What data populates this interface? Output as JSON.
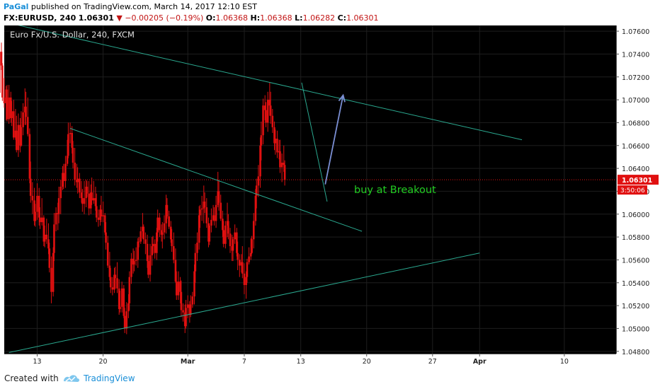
{
  "header": {
    "author": "PaGal",
    "published_text": "published on TradingView.com, March 14, 2017 12:10 EST",
    "symbol": "FX:EURUSD, 240",
    "last": "1.06301",
    "change": "−0.00205 (−0.19%)",
    "open_label": "O:",
    "open_value": "1.06368",
    "high_label": "H:",
    "high_value": "1.06368",
    "low_label": "L:",
    "low_value": "1.06282",
    "close_label": "C:",
    "close_value": "1.06301"
  },
  "chart_data": {
    "type": "candlestick",
    "title": "Euro Fx/U.S. Dollar, 240, FXCM",
    "ylim": [
      1.0478,
      1.0765
    ],
    "y_ticks": [
      "1.07600",
      "1.07400",
      "1.07200",
      "1.07000",
      "1.06800",
      "1.06600",
      "1.06400",
      "1.06200",
      "1.06000",
      "1.05800",
      "1.05600",
      "1.05400",
      "1.05200",
      "1.05000",
      "1.04800"
    ],
    "y_tick_values": [
      1.076,
      1.074,
      1.072,
      1.07,
      1.068,
      1.066,
      1.064,
      1.062,
      1.06,
      1.058,
      1.056,
      1.054,
      1.052,
      1.05,
      1.048
    ],
    "x_ticks": [
      "13",
      "20",
      "Mar",
      "7",
      "13",
      "20",
      "27",
      "Apr",
      "10"
    ],
    "x_tick_days": [
      -16,
      -9,
      0,
      6,
      12,
      19,
      26,
      31,
      40
    ],
    "day_range": [
      -19.5,
      45.5
    ],
    "current_price": {
      "label": "1.06301",
      "value": 1.06301,
      "countdown": "3:50:06"
    },
    "annotation": "buy at Breakout",
    "colors": {
      "candle": "#e01010",
      "trendline": "#2aa88f",
      "arrow": "#7b8fd4",
      "annotation": "#22cc22",
      "price_line": "#e01010"
    },
    "trendlines": [
      {
        "name": "upper-resistance",
        "from": [
          -19.5,
          1.0768
        ],
        "to": [
          35.5,
          1.0665
        ]
      },
      {
        "name": "inner-resistance",
        "from": [
          -12.5,
          1.0675
        ],
        "to": [
          18.5,
          1.0585
        ]
      },
      {
        "name": "lower-support",
        "from": [
          -19.0,
          1.0479
        ],
        "to": [
          31.0,
          1.0566
        ]
      },
      {
        "name": "pullback-line",
        "from": [
          12.1,
          1.0715
        ],
        "to": [
          14.8,
          1.0611
        ]
      }
    ],
    "arrow": {
      "from": [
        14.6,
        1.0626
      ],
      "to": [
        16.5,
        1.0704
      ]
    },
    "candles": [
      [
        -20.0,
        1.0706,
        1.0748,
        1.0701,
        1.0742
      ],
      [
        -19.8,
        1.0742,
        1.075,
        1.0726,
        1.073
      ],
      [
        -19.7,
        1.073,
        1.0732,
        1.0699,
        1.0702
      ],
      [
        -19.5,
        1.0702,
        1.0719,
        1.0693,
        1.0697
      ],
      [
        -19.3,
        1.0697,
        1.0712,
        1.0682,
        1.0709
      ],
      [
        -19.2,
        1.0709,
        1.0713,
        1.0681,
        1.0683
      ],
      [
        -19.0,
        1.0683,
        1.0713,
        1.0679,
        1.0702
      ],
      [
        -18.8,
        1.0702,
        1.0707,
        1.068,
        1.0684
      ],
      [
        -18.7,
        1.0684,
        1.0699,
        1.0677,
        1.069
      ],
      [
        -18.5,
        1.069,
        1.07,
        1.0665,
        1.0667
      ],
      [
        -18.3,
        1.0667,
        1.0692,
        1.0665,
        1.0673
      ],
      [
        -18.2,
        1.0673,
        1.0686,
        1.0654,
        1.0656
      ],
      [
        -18.0,
        1.0656,
        1.0688,
        1.065,
        1.0678
      ],
      [
        -17.8,
        1.0678,
        1.0684,
        1.0654,
        1.066
      ],
      [
        -17.7,
        1.066,
        1.069,
        1.0659,
        1.0676
      ],
      [
        -17.5,
        1.0676,
        1.0697,
        1.0669,
        1.0689
      ],
      [
        -17.3,
        1.0689,
        1.071,
        1.0678,
        1.0694
      ],
      [
        -17.2,
        1.0694,
        1.0707,
        1.0678,
        1.0685
      ],
      [
        -17.0,
        1.0685,
        1.0702,
        1.0668,
        1.067
      ],
      [
        -16.8,
        1.067,
        1.0675,
        1.0627,
        1.0631
      ],
      [
        -16.7,
        1.0631,
        1.0646,
        1.061,
        1.0616
      ],
      [
        -16.5,
        1.0616,
        1.0628,
        1.06,
        1.0612
      ],
      [
        -16.3,
        1.0612,
        1.0623,
        1.059,
        1.0594
      ],
      [
        -16.2,
        1.0594,
        1.0609,
        1.0589,
        1.0602
      ],
      [
        -16.0,
        1.0602,
        1.0627,
        1.0595,
        1.0616
      ],
      [
        -15.8,
        1.0616,
        1.0623,
        1.059,
        1.0597
      ],
      [
        -15.7,
        1.0597,
        1.0606,
        1.0587,
        1.0593
      ],
      [
        -15.5,
        1.0593,
        1.0614,
        1.059,
        1.0597
      ],
      [
        -15.3,
        1.0597,
        1.0599,
        1.0572,
        1.0576
      ],
      [
        -15.2,
        1.0576,
        1.059,
        1.0571,
        1.0582
      ],
      [
        -15.0,
        1.0582,
        1.0596,
        1.0574,
        1.0578
      ],
      [
        -14.8,
        1.0578,
        1.0592,
        1.0565,
        1.057
      ],
      [
        -14.7,
        1.057,
        1.0575,
        1.0549,
        1.0553
      ],
      [
        -14.5,
        1.0553,
        1.0563,
        1.0522,
        1.0532
      ],
      [
        -14.3,
        1.0532,
        1.0571,
        1.0528,
        1.0566
      ],
      [
        -14.2,
        1.0566,
        1.0601,
        1.0559,
        1.0591
      ],
      [
        -14.0,
        1.0591,
        1.0606,
        1.0585,
        1.0601
      ],
      [
        -13.8,
        1.0601,
        1.061,
        1.0586,
        1.06
      ],
      [
        -13.7,
        1.06,
        1.0624,
        1.0592,
        1.0614
      ],
      [
        -13.5,
        1.0614,
        1.063,
        1.06,
        1.0624
      ],
      [
        -13.3,
        1.0624,
        1.0642,
        1.0621,
        1.0636
      ],
      [
        -13.2,
        1.0636,
        1.0644,
        1.0622,
        1.0629
      ],
      [
        -13.0,
        1.0629,
        1.0651,
        1.0623,
        1.0644
      ],
      [
        -12.8,
        1.0644,
        1.0665,
        1.0642,
        1.0651
      ],
      [
        -12.7,
        1.0651,
        1.068,
        1.0649,
        1.067
      ],
      [
        -12.5,
        1.067,
        1.068,
        1.0662,
        1.0671
      ],
      [
        -12.3,
        1.0671,
        1.0677,
        1.0653,
        1.0658
      ],
      [
        -12.2,
        1.0658,
        1.0664,
        1.064,
        1.0645
      ],
      [
        -12.0,
        1.0645,
        1.0658,
        1.0625,
        1.063
      ],
      [
        -11.8,
        1.063,
        1.0644,
        1.0623,
        1.0628
      ],
      [
        -11.7,
        1.0628,
        1.0641,
        1.0618,
        1.0631
      ],
      [
        -11.5,
        1.0631,
        1.0636,
        1.0614,
        1.0619
      ],
      [
        -11.3,
        1.0619,
        1.0629,
        1.061,
        1.0614
      ],
      [
        -11.2,
        1.0614,
        1.0622,
        1.0602,
        1.0609
      ],
      [
        -11.0,
        1.0609,
        1.0629,
        1.06,
        1.0614
      ],
      [
        -10.8,
        1.0614,
        1.063,
        1.0606,
        1.0624
      ],
      [
        -10.7,
        1.0624,
        1.0629,
        1.0615,
        1.0618
      ],
      [
        -10.5,
        1.0618,
        1.0629,
        1.0599,
        1.0605
      ],
      [
        -10.3,
        1.0605,
        1.0626,
        1.06,
        1.0619
      ],
      [
        -10.2,
        1.0619,
        1.0632,
        1.0608,
        1.0612
      ],
      [
        -10.0,
        1.0612,
        1.0629,
        1.0609,
        1.0614
      ],
      [
        -9.8,
        1.0614,
        1.0624,
        1.0603,
        1.0607
      ],
      [
        -9.7,
        1.0607,
        1.0618,
        1.0593,
        1.0597
      ],
      [
        -9.5,
        1.0597,
        1.0604,
        1.0589,
        1.0595
      ],
      [
        -9.3,
        1.0595,
        1.0608,
        1.059,
        1.0604
      ],
      [
        -9.2,
        1.0604,
        1.0616,
        1.0593,
        1.0598
      ],
      [
        -9.0,
        1.0598,
        1.0611,
        1.0593,
        1.0599
      ],
      [
        -8.8,
        1.0599,
        1.0601,
        1.0582,
        1.0584
      ],
      [
        -8.7,
        1.0584,
        1.0593,
        1.0569,
        1.0575
      ],
      [
        -8.5,
        1.0575,
        1.0581,
        1.0553,
        1.0555
      ],
      [
        -8.3,
        1.0555,
        1.0567,
        1.0542,
        1.0545
      ],
      [
        -8.2,
        1.0545,
        1.0553,
        1.0531,
        1.0536
      ],
      [
        -8.0,
        1.0536,
        1.0545,
        1.0529,
        1.0534
      ],
      [
        -7.8,
        1.0534,
        1.0553,
        1.0531,
        1.0547
      ],
      [
        -7.7,
        1.0547,
        1.0554,
        1.0535,
        1.0544
      ],
      [
        -7.5,
        1.0544,
        1.0558,
        1.0531,
        1.0535
      ],
      [
        -7.3,
        1.0535,
        1.0543,
        1.0512,
        1.0517
      ],
      [
        -7.2,
        1.0517,
        1.0533,
        1.0514,
        1.0519
      ],
      [
        -7.0,
        1.0519,
        1.0541,
        1.0514,
        1.0535
      ],
      [
        -6.8,
        1.0535,
        1.0538,
        1.0509,
        1.0511
      ],
      [
        -6.7,
        1.0511,
        1.0518,
        1.0496,
        1.05
      ],
      [
        -6.5,
        1.05,
        1.0523,
        1.0495,
        1.0515
      ],
      [
        -6.3,
        1.0515,
        1.053,
        1.0509,
        1.0522
      ],
      [
        -6.2,
        1.0522,
        1.055,
        1.0516,
        1.0545
      ],
      [
        -6.0,
        1.0545,
        1.0566,
        1.0539,
        1.0561
      ],
      [
        -5.8,
        1.0561,
        1.057,
        1.0548,
        1.0556
      ],
      [
        -5.7,
        1.0556,
        1.0568,
        1.055,
        1.0559
      ],
      [
        -5.5,
        1.0559,
        1.0571,
        1.0555,
        1.056
      ],
      [
        -5.3,
        1.056,
        1.0579,
        1.0553,
        1.0576
      ],
      [
        -5.2,
        1.0576,
        1.058,
        1.0571,
        1.0576
      ],
      [
        -5.0,
        1.0576,
        1.0589,
        1.0574,
        1.0585
      ],
      [
        -4.8,
        1.0585,
        1.0601,
        1.0579,
        1.0589
      ],
      [
        -4.7,
        1.0589,
        1.0591,
        1.0574,
        1.0578
      ],
      [
        -4.5,
        1.0578,
        1.0584,
        1.0565,
        1.0574
      ],
      [
        -4.3,
        1.0574,
        1.0582,
        1.0553,
        1.0559
      ],
      [
        -4.2,
        1.0559,
        1.0564,
        1.0544,
        1.0547
      ],
      [
        -4.0,
        1.0547,
        1.0574,
        1.0541,
        1.0564
      ],
      [
        -3.8,
        1.0564,
        1.058,
        1.0555,
        1.0572
      ],
      [
        -3.7,
        1.0572,
        1.0581,
        1.0565,
        1.0574
      ],
      [
        -3.5,
        1.0574,
        1.0578,
        1.0561,
        1.0566
      ],
      [
        -3.3,
        1.0566,
        1.0588,
        1.056,
        1.0584
      ],
      [
        -3.2,
        1.0584,
        1.0604,
        1.0576,
        1.0597
      ],
      [
        -3.0,
        1.0597,
        1.0601,
        1.058,
        1.0586
      ],
      [
        -2.8,
        1.0586,
        1.0591,
        1.0576,
        1.0582
      ],
      [
        -2.7,
        1.0582,
        1.0593,
        1.057,
        1.0584
      ],
      [
        -2.5,
        1.0584,
        1.0599,
        1.0578,
        1.0592
      ],
      [
        -2.3,
        1.0592,
        1.0617,
        1.0583,
        1.0608
      ],
      [
        -2.2,
        1.0608,
        1.0614,
        1.0596,
        1.0598
      ],
      [
        -2.0,
        1.0598,
        1.0603,
        1.0587,
        1.0589
      ],
      [
        -1.8,
        1.0589,
        1.0594,
        1.0575,
        1.0578
      ],
      [
        -1.7,
        1.0578,
        1.0587,
        1.0567,
        1.0572
      ],
      [
        -1.5,
        1.0572,
        1.0584,
        1.0557,
        1.056
      ],
      [
        -1.3,
        1.056,
        1.057,
        1.054,
        1.0541
      ],
      [
        -1.2,
        1.0541,
        1.055,
        1.0525,
        1.0529
      ],
      [
        -1.0,
        1.0529,
        1.055,
        1.0525,
        1.0541
      ],
      [
        -0.8,
        1.0541,
        1.0545,
        1.0522,
        1.0532
      ],
      [
        -0.7,
        1.0532,
        1.0542,
        1.051,
        1.0516
      ],
      [
        -0.5,
        1.0516,
        1.0522,
        1.0506,
        1.0514
      ],
      [
        -0.3,
        1.0514,
        1.0521,
        1.0496,
        1.0502
      ],
      [
        -0.2,
        1.0502,
        1.0525,
        1.05,
        1.0518
      ],
      [
        0.0,
        1.0518,
        1.0529,
        1.0509,
        1.0521
      ],
      [
        0.2,
        1.0521,
        1.0524,
        1.0505,
        1.0512
      ],
      [
        0.3,
        1.0512,
        1.0529,
        1.051,
        1.0521
      ],
      [
        0.5,
        1.0521,
        1.0532,
        1.0518,
        1.0528
      ],
      [
        0.7,
        1.0528,
        1.0556,
        1.0521,
        1.055
      ],
      [
        0.8,
        1.055,
        1.0574,
        1.054,
        1.0566
      ],
      [
        1.0,
        1.0566,
        1.0584,
        1.0559,
        1.0575
      ],
      [
        1.2,
        1.0575,
        1.0607,
        1.0569,
        1.0599
      ],
      [
        1.3,
        1.0599,
        1.0608,
        1.0588,
        1.0604
      ],
      [
        1.5,
        1.0604,
        1.0616,
        1.0594,
        1.0605
      ],
      [
        1.7,
        1.0605,
        1.0625,
        1.0592,
        1.0611
      ],
      [
        1.8,
        1.0611,
        1.0619,
        1.0601,
        1.0606
      ],
      [
        2.0,
        1.0606,
        1.0614,
        1.0588,
        1.0592
      ],
      [
        2.2,
        1.0592,
        1.0597,
        1.0571,
        1.0576
      ],
      [
        2.3,
        1.0576,
        1.0592,
        1.0573,
        1.059
      ],
      [
        2.5,
        1.059,
        1.0605,
        1.0584,
        1.0595
      ],
      [
        2.7,
        1.0595,
        1.0608,
        1.0594,
        1.0599
      ],
      [
        2.8,
        1.0599,
        1.0606,
        1.059,
        1.0594
      ],
      [
        3.0,
        1.0594,
        1.0616,
        1.0588,
        1.0608
      ],
      [
        3.2,
        1.0608,
        1.0637,
        1.0606,
        1.062
      ],
      [
        3.3,
        1.062,
        1.0629,
        1.0603,
        1.061
      ],
      [
        3.5,
        1.061,
        1.0617,
        1.0594,
        1.0596
      ],
      [
        3.7,
        1.0596,
        1.0603,
        1.058,
        1.0586
      ],
      [
        3.8,
        1.0586,
        1.0594,
        1.0571,
        1.0574
      ],
      [
        4.0,
        1.0574,
        1.0594,
        1.057,
        1.059
      ],
      [
        4.2,
        1.059,
        1.061,
        1.058,
        1.0594
      ],
      [
        4.3,
        1.0594,
        1.06,
        1.0578,
        1.0583
      ],
      [
        4.5,
        1.0583,
        1.0588,
        1.0566,
        1.0572
      ],
      [
        4.7,
        1.0572,
        1.0582,
        1.0559,
        1.0568
      ],
      [
        4.8,
        1.0568,
        1.058,
        1.0559,
        1.0578
      ],
      [
        5.0,
        1.0578,
        1.0591,
        1.0574,
        1.0584
      ],
      [
        5.2,
        1.0584,
        1.0588,
        1.0563,
        1.0566
      ],
      [
        5.3,
        1.0566,
        1.0576,
        1.0551,
        1.056
      ],
      [
        5.5,
        1.056,
        1.0565,
        1.0545,
        1.0555
      ],
      [
        5.7,
        1.0555,
        1.0565,
        1.0549,
        1.0558
      ],
      [
        5.8,
        1.0558,
        1.0572,
        1.0544,
        1.0548
      ],
      [
        6.0,
        1.0548,
        1.0557,
        1.053,
        1.0538
      ],
      [
        6.2,
        1.0538,
        1.055,
        1.0526,
        1.0545
      ],
      [
        6.3,
        1.0545,
        1.0561,
        1.054,
        1.0558
      ],
      [
        6.5,
        1.0558,
        1.0571,
        1.0556,
        1.0563
      ],
      [
        6.7,
        1.0563,
        1.0579,
        1.056,
        1.0566
      ],
      [
        6.8,
        1.0566,
        1.0581,
        1.0565,
        1.0578
      ],
      [
        7.0,
        1.0578,
        1.0601,
        1.057,
        1.0594
      ],
      [
        7.2,
        1.0594,
        1.0622,
        1.059,
        1.0616
      ],
      [
        7.3,
        1.0616,
        1.0631,
        1.0605,
        1.0625
      ],
      [
        7.5,
        1.0625,
        1.0643,
        1.0615,
        1.0633
      ],
      [
        7.7,
        1.0633,
        1.0667,
        1.0623,
        1.066
      ],
      [
        7.8,
        1.066,
        1.0681,
        1.0647,
        1.0669
      ],
      [
        8.0,
        1.0669,
        1.0701,
        1.0661,
        1.0695
      ],
      [
        8.2,
        1.0695,
        1.0704,
        1.0682,
        1.0691
      ],
      [
        8.3,
        1.0691,
        1.0698,
        1.0676,
        1.068
      ],
      [
        8.5,
        1.068,
        1.0707,
        1.0672,
        1.07
      ],
      [
        8.7,
        1.07,
        1.0715,
        1.0686,
        1.0695
      ],
      [
        8.8,
        1.0695,
        1.0707,
        1.0679,
        1.0686
      ],
      [
        9.0,
        1.0686,
        1.0692,
        1.0671,
        1.0676
      ],
      [
        9.2,
        1.0676,
        1.0681,
        1.0656,
        1.0662
      ],
      [
        9.3,
        1.0662,
        1.0674,
        1.0652,
        1.0666
      ],
      [
        9.5,
        1.0666,
        1.0673,
        1.0649,
        1.0654
      ],
      [
        9.7,
        1.0654,
        1.0665,
        1.0648,
        1.0655
      ],
      [
        9.8,
        1.0655,
        1.0665,
        1.0636,
        1.0641
      ],
      [
        10.0,
        1.0641,
        1.0653,
        1.0628,
        1.0645
      ],
      [
        10.2,
        1.0645,
        1.066,
        1.0637,
        1.0643
      ],
      [
        10.3,
        1.0643,
        1.0647,
        1.0625,
        1.063
      ]
    ]
  },
  "footer": {
    "created_with": "Created with",
    "brand": "TradingView"
  }
}
